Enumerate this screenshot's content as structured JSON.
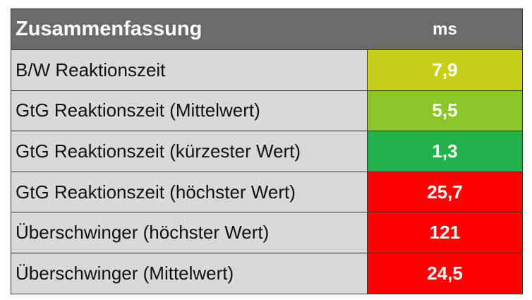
{
  "table": {
    "header": {
      "label": "Zusammenfassung",
      "unit": "ms"
    },
    "rows": [
      {
        "label": "B/W Reaktionszeit",
        "value": "7,9",
        "color": "#c8cf1b"
      },
      {
        "label": "GtG Reaktionszeit (Mittelwert)",
        "value": "5,5",
        "color": "#8dc42a"
      },
      {
        "label": "GtG Reaktionszeit (kürzester Wert)",
        "value": "1,3",
        "color": "#22b14c"
      },
      {
        "label": "GtG Reaktionszeit (höchster Wert)",
        "value": "25,7",
        "color": "#ff0000"
      },
      {
        "label": "Überschwinger (höchster Wert)",
        "value": "121",
        "color": "#ff0000"
      },
      {
        "label": "Überschwinger (Mittelwert)",
        "value": "24,5",
        "color": "#ff0000"
      }
    ]
  }
}
